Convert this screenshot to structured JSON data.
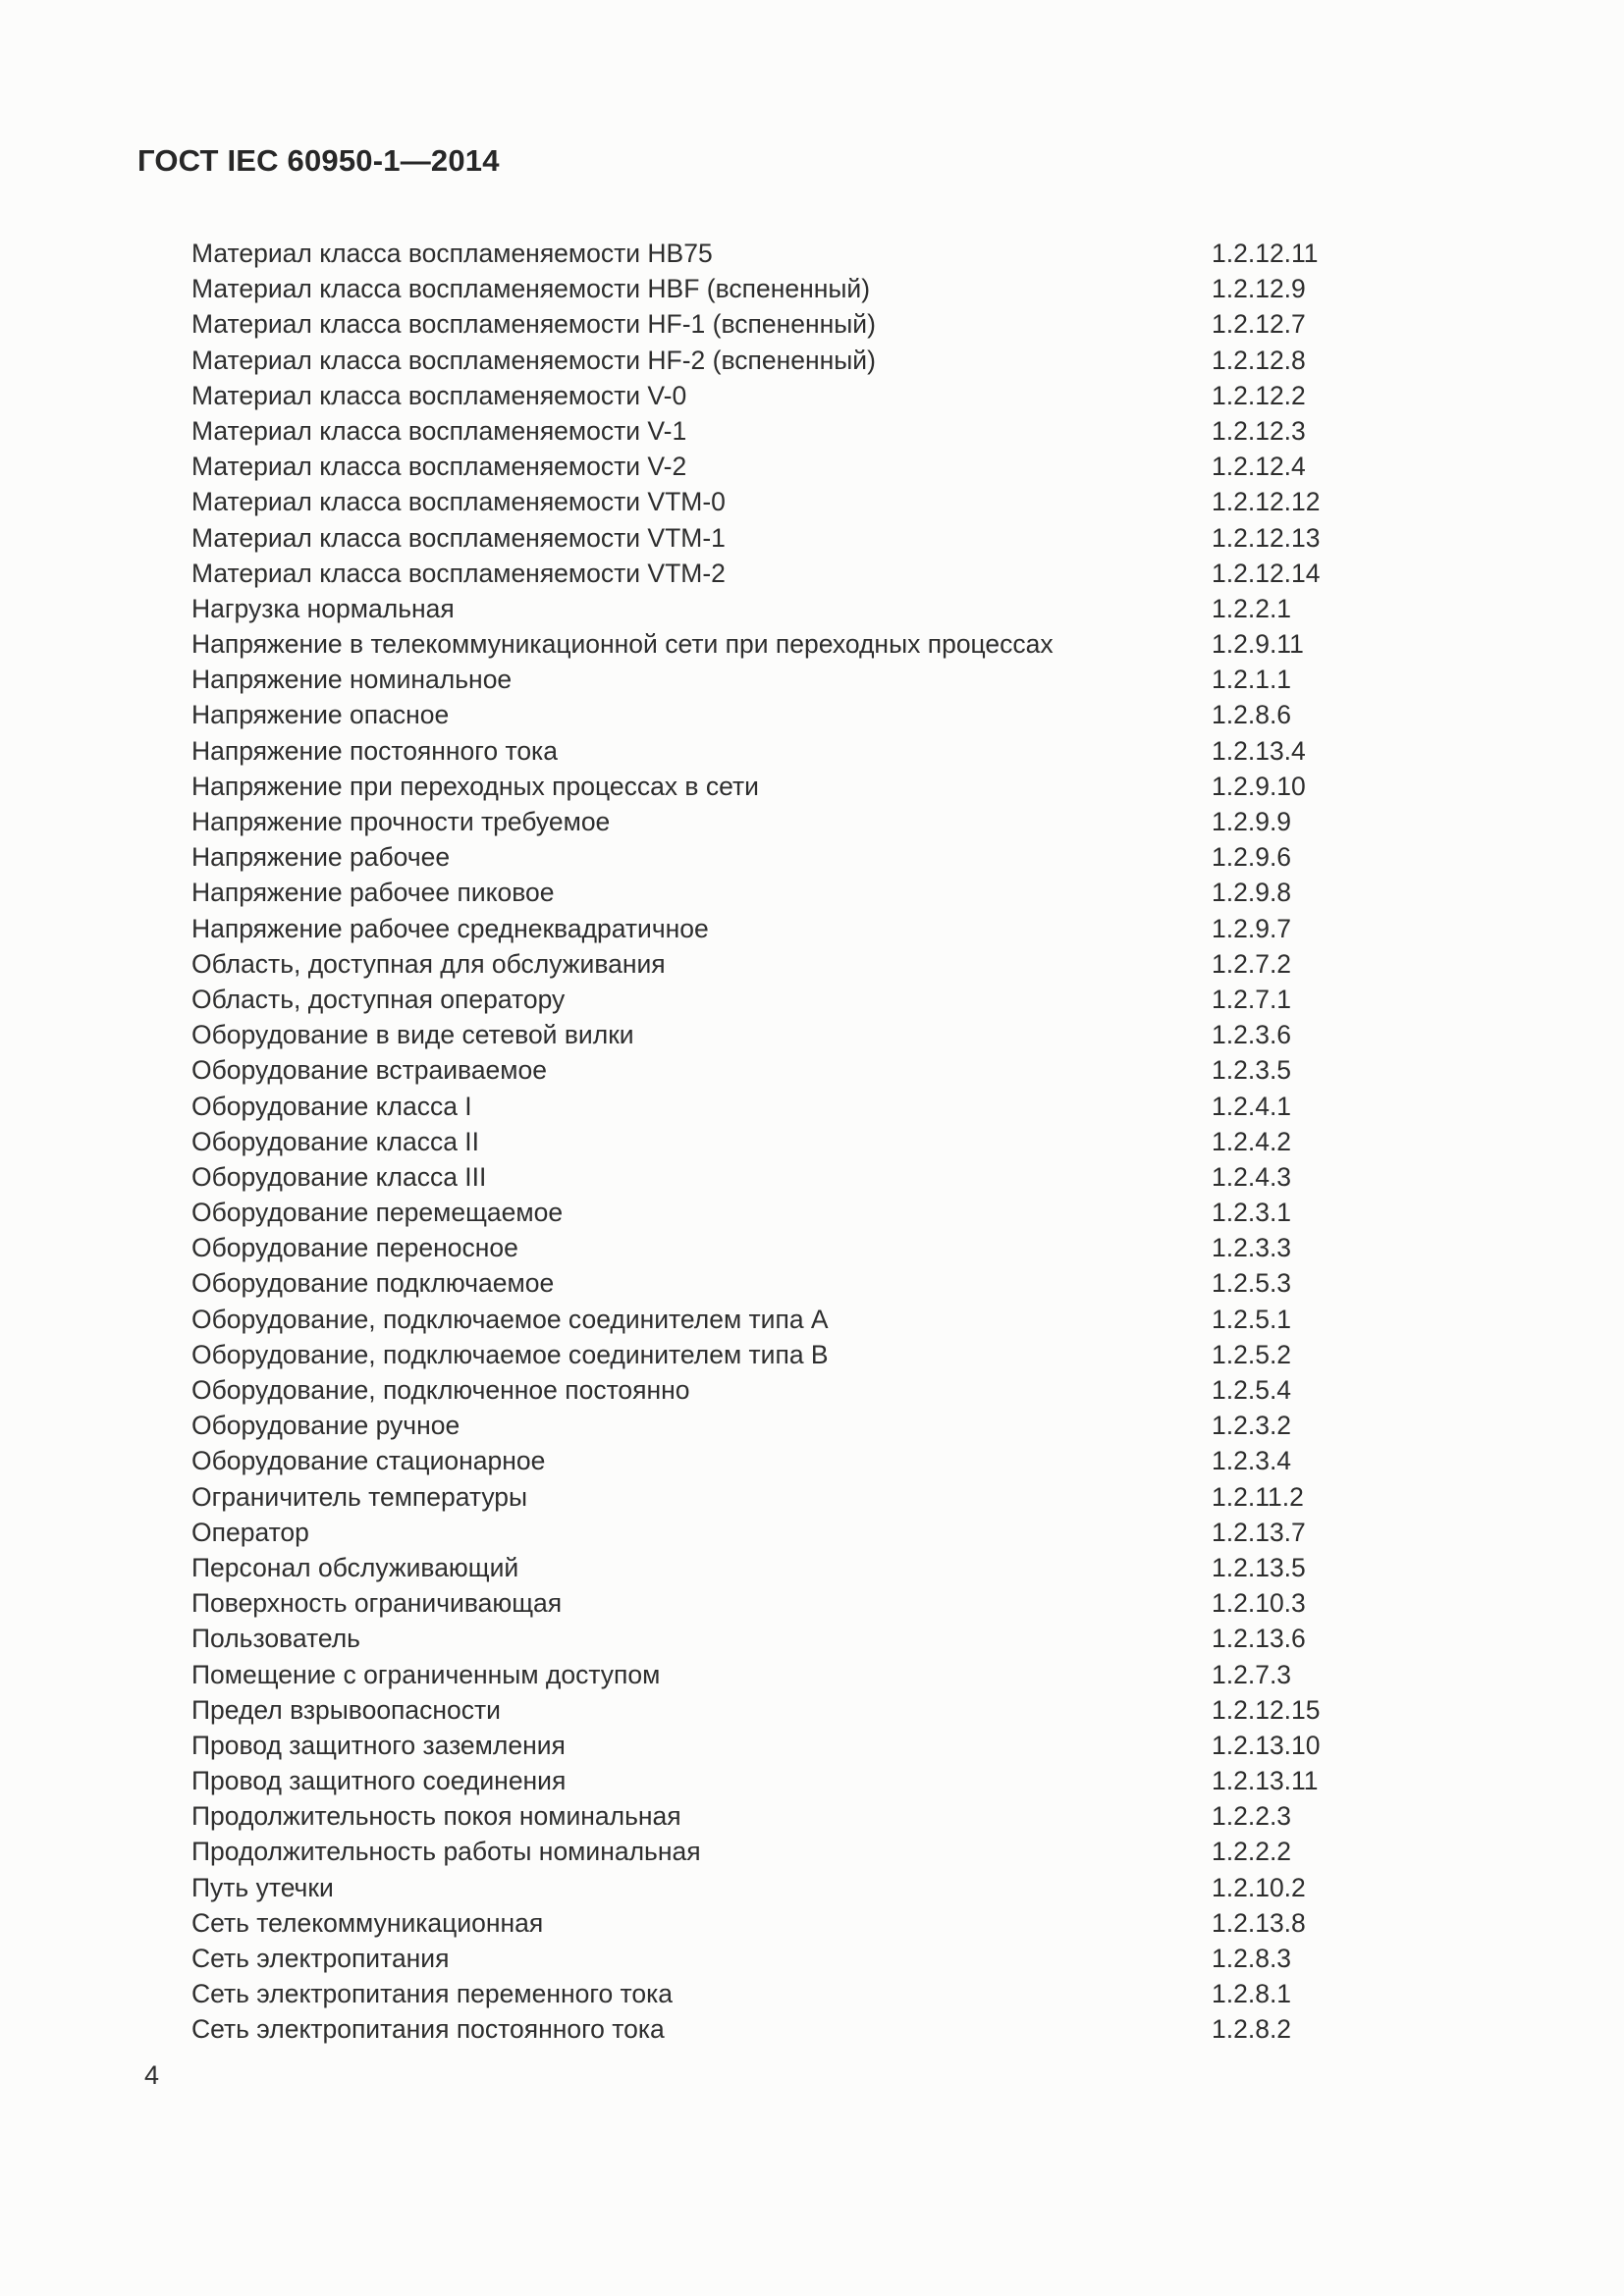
{
  "page": {
    "header": "ГОСТ IEC 60950-1—2014",
    "page_number": "4"
  },
  "index": {
    "entries": [
      {
        "term": "Материал класса воспламеняемости HB75",
        "ref": "1.2.12.11"
      },
      {
        "term": "Материал класса воспламеняемости HBF (вспененный)",
        "ref": "1.2.12.9"
      },
      {
        "term": "Материал класса воспламеняемости HF-1 (вспененный)",
        "ref": "1.2.12.7"
      },
      {
        "term": "Материал класса воспламеняемости HF-2 (вспененный)",
        "ref": "1.2.12.8"
      },
      {
        "term": "Материал класса воспламеняемости V-0",
        "ref": "1.2.12.2"
      },
      {
        "term": "Материал класса воспламеняемости V-1",
        "ref": "1.2.12.3"
      },
      {
        "term": "Материал класса воспламеняемости V-2",
        "ref": "1.2.12.4"
      },
      {
        "term": "Материал класса воспламеняемости VTM-0",
        "ref": "1.2.12.12"
      },
      {
        "term": "Материал класса воспламеняемости VTM-1",
        "ref": "1.2.12.13"
      },
      {
        "term": "Материал класса воспламеняемости VTM-2",
        "ref": "1.2.12.14"
      },
      {
        "term": "Нагрузка нормальная",
        "ref": "1.2.2.1"
      },
      {
        "term": "Напряжение в телекоммуникационной сети при переходных процессах",
        "ref": "1.2.9.11"
      },
      {
        "term": "Напряжение номинальное",
        "ref": "1.2.1.1"
      },
      {
        "term": "Напряжение опасное",
        "ref": "1.2.8.6"
      },
      {
        "term": "Напряжение постоянного тока",
        "ref": "1.2.13.4"
      },
      {
        "term": "Напряжение при переходных процессах в сети",
        "ref": "1.2.9.10"
      },
      {
        "term": "Напряжение прочности требуемое",
        "ref": "1.2.9.9"
      },
      {
        "term": "Напряжение рабочее",
        "ref": "1.2.9.6"
      },
      {
        "term": "Напряжение рабочее пиковое",
        "ref": "1.2.9.8"
      },
      {
        "term": "Напряжение рабочее среднеквадратичное",
        "ref": "1.2.9.7"
      },
      {
        "term": "Область, доступная для обслуживания",
        "ref": "1.2.7.2"
      },
      {
        "term": "Область, доступная оператору",
        "ref": "1.2.7.1"
      },
      {
        "term": "Оборудование в виде сетевой вилки",
        "ref": "1.2.3.6"
      },
      {
        "term": "Оборудование встраиваемое",
        "ref": "1.2.3.5"
      },
      {
        "term": "Оборудование класса I",
        "ref": "1.2.4.1"
      },
      {
        "term": "Оборудование класса II",
        "ref": "1.2.4.2"
      },
      {
        "term": "Оборудование класса III",
        "ref": "1.2.4.3"
      },
      {
        "term": "Оборудование перемещаемое",
        "ref": "1.2.3.1"
      },
      {
        "term": "Оборудование переносное",
        "ref": "1.2.3.3"
      },
      {
        "term": "Оборудование подключаемое",
        "ref": "1.2.5.3"
      },
      {
        "term": "Оборудование, подключаемое соединителем типа A",
        "ref": "1.2.5.1"
      },
      {
        "term": "Оборудование, подключаемое соединителем типа B",
        "ref": "1.2.5.2"
      },
      {
        "term": "Оборудование, подключенное постоянно",
        "ref": "1.2.5.4"
      },
      {
        "term": "Оборудование ручное",
        "ref": "1.2.3.2"
      },
      {
        "term": "Оборудование стационарное",
        "ref": "1.2.3.4"
      },
      {
        "term": "Ограничитель температуры",
        "ref": "1.2.11.2"
      },
      {
        "term": "Оператор",
        "ref": "1.2.13.7"
      },
      {
        "term": "Персонал обслуживающий",
        "ref": "1.2.13.5"
      },
      {
        "term": "Поверхность ограничивающая",
        "ref": "1.2.10.3"
      },
      {
        "term": "Пользователь",
        "ref": "1.2.13.6"
      },
      {
        "term": "Помещение с ограниченным доступом",
        "ref": "1.2.7.3"
      },
      {
        "term": "Предел взрывоопасности",
        "ref": "1.2.12.15"
      },
      {
        "term": "Провод защитного заземления",
        "ref": "1.2.13.10"
      },
      {
        "term": "Провод защитного соединения",
        "ref": "1.2.13.11"
      },
      {
        "term": "Продолжительность покоя номинальная",
        "ref": "1.2.2.3"
      },
      {
        "term": "Продолжительность работы номинальная",
        "ref": "1.2.2.2"
      },
      {
        "term": "Путь утечки",
        "ref": "1.2.10.2"
      },
      {
        "term": "Сеть телекоммуникационная",
        "ref": "1.2.13.8"
      },
      {
        "term": "Сеть электропитания",
        "ref": "1.2.8.3"
      },
      {
        "term": "Сеть электропитания переменного тока",
        "ref": "1.2.8.1"
      },
      {
        "term": "Сеть электропитания постоянного тока",
        "ref": "1.2.8.2"
      }
    ]
  }
}
